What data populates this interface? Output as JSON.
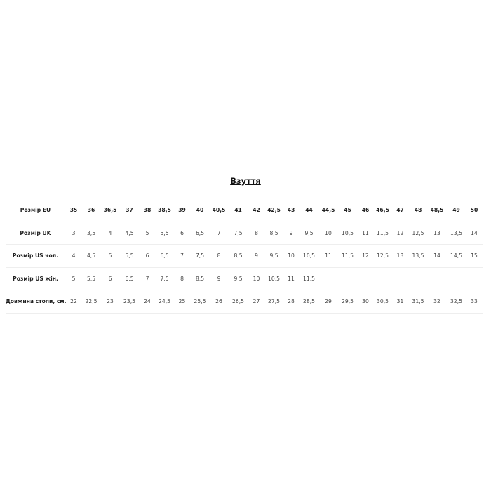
{
  "title": "Взуття",
  "table": {
    "rows": [
      {
        "label": "Розмір EU",
        "values": [
          "35",
          "36",
          "36,5",
          "37",
          "38",
          "38,5",
          "39",
          "40",
          "40,5",
          "41",
          "42",
          "42,5",
          "43",
          "44",
          "44,5",
          "45",
          "46",
          "46,5",
          "47",
          "48",
          "48,5",
          "49",
          "50"
        ]
      },
      {
        "label": "Розмір UK",
        "values": [
          "3",
          "3,5",
          "4",
          "4,5",
          "5",
          "5,5",
          "6",
          "6,5",
          "7",
          "7,5",
          "8",
          "8,5",
          "9",
          "9,5",
          "10",
          "10,5",
          "11",
          "11,5",
          "12",
          "12,5",
          "13",
          "13,5",
          "14"
        ]
      },
      {
        "label": "Розмір US чол.",
        "values": [
          "4",
          "4,5",
          "5",
          "5,5",
          "6",
          "6,5",
          "7",
          "7,5",
          "8",
          "8,5",
          "9",
          "9,5",
          "10",
          "10,5",
          "11",
          "11,5",
          "12",
          "12,5",
          "13",
          "13,5",
          "14",
          "14,5",
          "15"
        ]
      },
      {
        "label": "Розмір US жін.",
        "values": [
          "5",
          "5,5",
          "6",
          "6,5",
          "7",
          "7,5",
          "8",
          "8,5",
          "9",
          "9,5",
          "10",
          "10,5",
          "11",
          "11,5",
          "",
          "",
          "",
          "",
          "",
          "",
          "",
          "",
          ""
        ]
      },
      {
        "label": "Довжина стопи, см.",
        "values": [
          "22",
          "22,5",
          "23",
          "23,5",
          "24",
          "24,5",
          "25",
          "25,5",
          "26",
          "26,5",
          "27",
          "27,5",
          "28",
          "28,5",
          "29",
          "29,5",
          "30",
          "30,5",
          "31",
          "31,5",
          "32",
          "32,5",
          "33"
        ]
      }
    ]
  }
}
